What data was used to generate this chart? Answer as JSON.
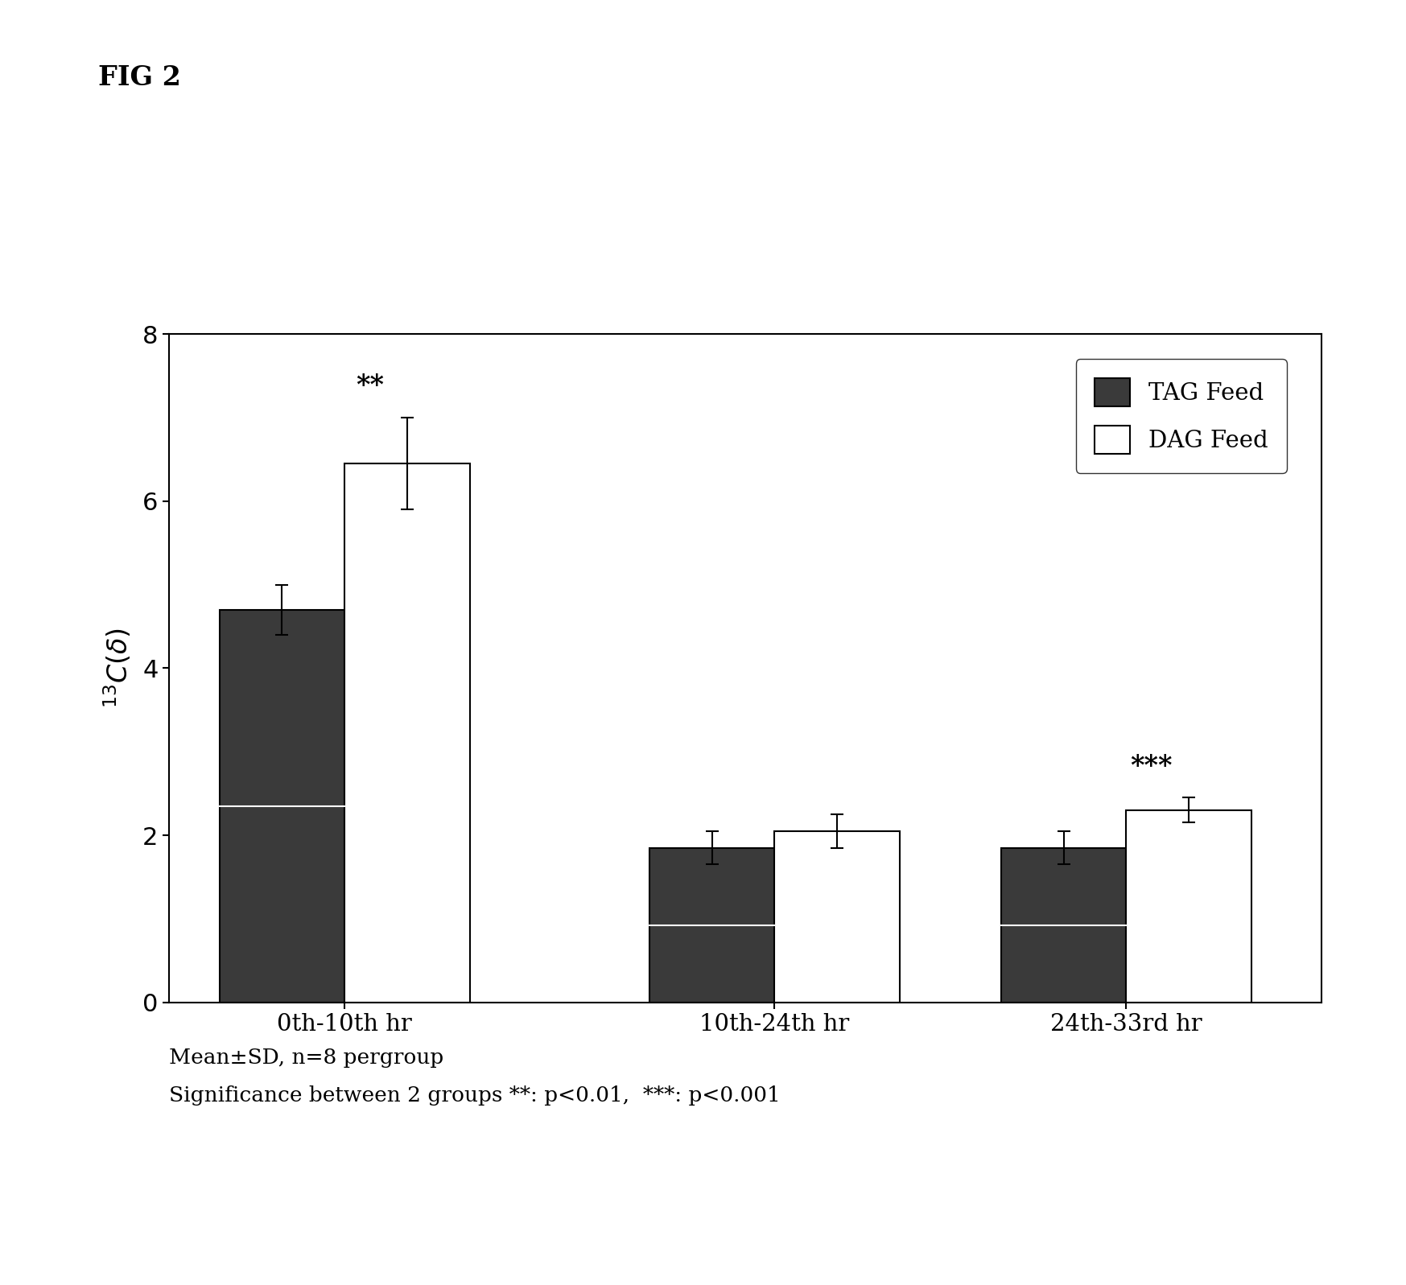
{
  "fig_label": "FIG 2",
  "groups": [
    "0th-10th hr",
    "10th-24th hr",
    "24th-33rd hr"
  ],
  "tag_values": [
    4.7,
    1.85,
    1.85
  ],
  "dag_values": [
    6.45,
    2.05,
    2.3
  ],
  "tag_errors": [
    0.3,
    0.2,
    0.2
  ],
  "dag_errors": [
    0.55,
    0.2,
    0.15
  ],
  "tag_color": "#3a3a3a",
  "dag_color": "#ffffff",
  "tag_label": "TAG Feed",
  "dag_label": "DAG Feed",
  "ylabel": "$^{13}C(\\delta)$",
  "ylim": [
    0,
    8
  ],
  "yticks": [
    0,
    2,
    4,
    6,
    8
  ],
  "significance": [
    "**",
    null,
    "***"
  ],
  "footnote_line1": "Mean±SD, n=8 pergroup",
  "footnote_line2": "Significance between 2 groups **: p<0.01,  ***: p<0.001",
  "bar_width": 0.32,
  "group_positions": [
    1.0,
    2.1,
    3.0
  ]
}
